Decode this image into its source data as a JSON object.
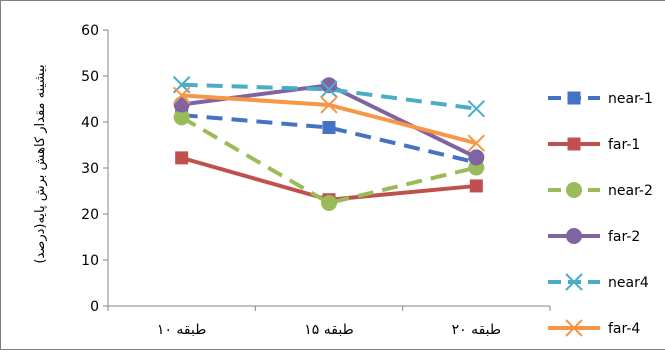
{
  "chart_data": {
    "type": "line",
    "title": "",
    "ylabel": "بیشینه مقدار کاهش برش پایه(درصد)",
    "xlabel": "",
    "ylim": [
      0,
      60
    ],
    "yticks": [
      "0",
      "10",
      "20",
      "30",
      "40",
      "50",
      "60"
    ],
    "categories": [
      "۱۰ طبقه",
      "۱۵ طبقه",
      "۲۰ طبقه"
    ],
    "grid": false,
    "legend": "right",
    "series": [
      {
        "name": "near-1",
        "values": [
          41.5,
          38.8,
          31.2
        ],
        "color": "#4472C4",
        "dash": "dashed",
        "marker": "square"
      },
      {
        "name": "far-1",
        "values": [
          32.2,
          23.1,
          26.1
        ],
        "color": "#C0504D",
        "dash": "solid",
        "marker": "square"
      },
      {
        "name": "near-2",
        "values": [
          41.0,
          22.4,
          30.1
        ],
        "color": "#9BBB59",
        "dash": "dashed",
        "marker": "circle"
      },
      {
        "name": "far-2",
        "values": [
          43.8,
          48.0,
          32.3
        ],
        "color": "#8064A2",
        "dash": "solid",
        "marker": "circle"
      },
      {
        "name": "near4",
        "values": [
          48.1,
          47.1,
          42.9
        ],
        "color": "#4BACC6",
        "dash": "dashed",
        "marker": "x"
      },
      {
        "name": "far-4",
        "values": [
          45.8,
          43.7,
          35.4
        ],
        "color": "#F79646",
        "dash": "solid",
        "marker": "x"
      }
    ]
  }
}
